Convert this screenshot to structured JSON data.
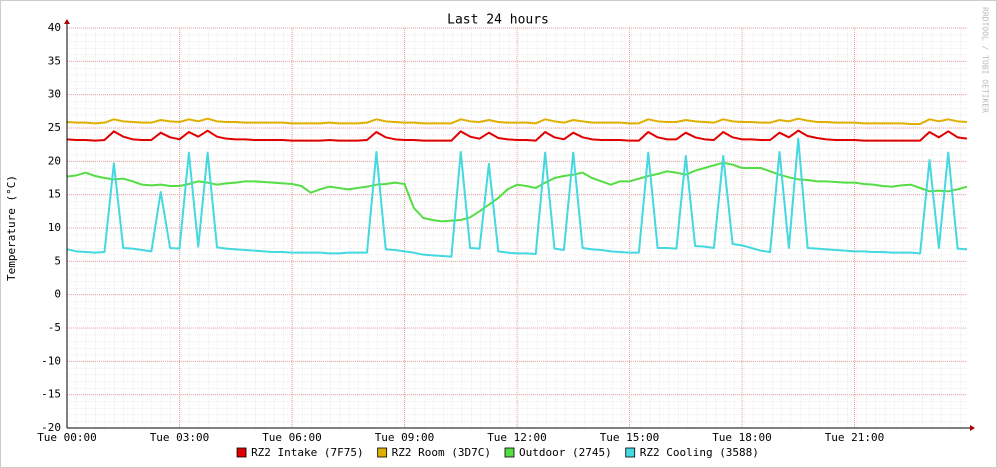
{
  "chart_data": {
    "type": "line",
    "title": "Last 24 hours",
    "ylabel": "Temperature (°C)",
    "watermark": "RRDTOOL / TOBI OETIKER",
    "grid": true,
    "xlim": [
      0,
      24
    ],
    "ylim": [
      -20,
      40
    ],
    "yticks": [
      -20,
      -15,
      -10,
      -5,
      0,
      5,
      10,
      15,
      20,
      25,
      30,
      35,
      40
    ],
    "xticks": [
      {
        "value": 0,
        "label": "Tue 00:00"
      },
      {
        "value": 3,
        "label": "Tue 03:00"
      },
      {
        "value": 6,
        "label": "Tue 06:00"
      },
      {
        "value": 9,
        "label": "Tue 09:00"
      },
      {
        "value": 12,
        "label": "Tue 12:00"
      },
      {
        "value": 15,
        "label": "Tue 15:00"
      },
      {
        "value": 18,
        "label": "Tue 18:00"
      },
      {
        "value": 21,
        "label": "Tue 21:00"
      }
    ],
    "x": [
      0,
      0.25,
      0.5,
      0.75,
      1,
      1.25,
      1.5,
      1.75,
      2,
      2.25,
      2.5,
      2.75,
      3,
      3.25,
      3.5,
      3.75,
      4,
      4.25,
      4.5,
      4.75,
      5,
      5.25,
      5.5,
      5.75,
      6,
      6.25,
      6.5,
      6.75,
      7,
      7.25,
      7.5,
      7.75,
      8,
      8.25,
      8.5,
      8.75,
      9,
      9.25,
      9.5,
      9.75,
      10,
      10.25,
      10.5,
      10.75,
      11,
      11.25,
      11.5,
      11.75,
      12,
      12.25,
      12.5,
      12.75,
      13,
      13.25,
      13.5,
      13.75,
      14,
      14.25,
      14.5,
      14.75,
      15,
      15.25,
      15.5,
      15.75,
      16,
      16.25,
      16.5,
      16.75,
      17,
      17.25,
      17.5,
      17.75,
      18,
      18.25,
      18.5,
      18.75,
      19,
      19.25,
      19.5,
      19.75,
      20,
      20.25,
      20.5,
      20.75,
      21,
      21.25,
      21.5,
      21.75,
      22,
      22.25,
      22.5,
      22.75,
      23,
      23.25,
      23.5,
      23.75,
      24
    ],
    "series": [
      {
        "name": "RZ2 Intake (7F75)",
        "color": "#e00000",
        "values": [
          23.3,
          23.2,
          23.2,
          23.1,
          23.2,
          24.5,
          23.7,
          23.3,
          23.2,
          23.2,
          24.3,
          23.6,
          23.3,
          24.4,
          23.7,
          24.6,
          23.7,
          23.4,
          23.3,
          23.3,
          23.2,
          23.2,
          23.2,
          23.2,
          23.1,
          23.1,
          23.1,
          23.1,
          23.2,
          23.1,
          23.1,
          23.1,
          23.2,
          24.4,
          23.6,
          23.3,
          23.2,
          23.2,
          23.1,
          23.1,
          23.1,
          23.1,
          24.5,
          23.7,
          23.4,
          24.3,
          23.5,
          23.3,
          23.2,
          23.2,
          23.1,
          24.4,
          23.6,
          23.3,
          24.3,
          23.6,
          23.3,
          23.2,
          23.2,
          23.2,
          23.1,
          23.1,
          24.4,
          23.6,
          23.3,
          23.3,
          24.3,
          23.6,
          23.3,
          23.2,
          24.4,
          23.6,
          23.3,
          23.3,
          23.2,
          23.2,
          24.3,
          23.6,
          24.6,
          23.8,
          23.5,
          23.3,
          23.2,
          23.2,
          23.2,
          23.1,
          23.1,
          23.1,
          23.1,
          23.1,
          23.1,
          23.1,
          24.4,
          23.6,
          24.5,
          23.6,
          23.4
        ]
      },
      {
        "name": "RZ2 Room (3D7C)",
        "color": "#e0b000",
        "values": [
          25.9,
          25.8,
          25.8,
          25.7,
          25.8,
          26.3,
          26.0,
          25.9,
          25.8,
          25.8,
          26.2,
          26.0,
          25.9,
          26.3,
          26.0,
          26.4,
          26.0,
          25.9,
          25.9,
          25.8,
          25.8,
          25.8,
          25.8,
          25.8,
          25.7,
          25.7,
          25.7,
          25.7,
          25.8,
          25.7,
          25.7,
          25.7,
          25.8,
          26.3,
          26.0,
          25.9,
          25.8,
          25.8,
          25.7,
          25.7,
          25.7,
          25.7,
          26.3,
          26.0,
          25.9,
          26.2,
          25.9,
          25.8,
          25.8,
          25.8,
          25.7,
          26.3,
          26.0,
          25.8,
          26.2,
          26.0,
          25.8,
          25.8,
          25.8,
          25.8,
          25.7,
          25.7,
          26.3,
          26.0,
          25.9,
          25.9,
          26.2,
          26.0,
          25.9,
          25.8,
          26.3,
          26.0,
          25.9,
          25.9,
          25.8,
          25.8,
          26.2,
          26.0,
          26.4,
          26.1,
          25.9,
          25.9,
          25.8,
          25.8,
          25.8,
          25.7,
          25.7,
          25.7,
          25.7,
          25.7,
          25.6,
          25.6,
          26.3,
          26.0,
          26.3,
          26.0,
          25.9
        ]
      },
      {
        "name": "Outdoor (2745)",
        "color": "#55dd44",
        "values": [
          17.7,
          17.9,
          18.3,
          17.8,
          17.5,
          17.3,
          17.4,
          17.0,
          16.5,
          16.4,
          16.5,
          16.3,
          16.3,
          16.6,
          17.0,
          16.8,
          16.5,
          16.7,
          16.8,
          17.0,
          17.0,
          16.9,
          16.8,
          16.7,
          16.6,
          16.3,
          15.3,
          15.8,
          16.2,
          16.0,
          15.8,
          16.0,
          16.2,
          16.5,
          16.6,
          16.8,
          16.6,
          13.0,
          11.5,
          11.2,
          11.0,
          11.1,
          11.2,
          11.6,
          12.5,
          13.5,
          14.5,
          15.8,
          16.5,
          16.3,
          16.0,
          16.8,
          17.5,
          17.8,
          18.0,
          18.3,
          17.5,
          17.0,
          16.5,
          17.0,
          17.0,
          17.4,
          17.8,
          18.1,
          18.5,
          18.3,
          18.0,
          18.6,
          19.0,
          19.4,
          19.8,
          19.5,
          19.0,
          19.0,
          19.0,
          18.5,
          18.0,
          17.6,
          17.3,
          17.2,
          17.0,
          17.0,
          16.9,
          16.8,
          16.8,
          16.6,
          16.5,
          16.3,
          16.2,
          16.4,
          16.5,
          16.0,
          15.5,
          15.6,
          15.5,
          15.8,
          16.2
        ]
      },
      {
        "name": "RZ2 Cooling (3588)",
        "color": "#44d8e0",
        "values": [
          6.8,
          6.5,
          6.4,
          6.3,
          6.4,
          19.7,
          7.0,
          6.9,
          6.7,
          6.5,
          15.4,
          7.0,
          6.9,
          21.3,
          7.2,
          21.3,
          7.1,
          6.9,
          6.8,
          6.7,
          6.6,
          6.5,
          6.4,
          6.4,
          6.3,
          6.3,
          6.3,
          6.3,
          6.2,
          6.2,
          6.3,
          6.3,
          6.3,
          21.4,
          6.8,
          6.7,
          6.5,
          6.3,
          6.0,
          5.9,
          5.8,
          5.7,
          21.4,
          7.0,
          6.9,
          19.6,
          6.5,
          6.3,
          6.2,
          6.2,
          6.1,
          21.3,
          6.9,
          6.7,
          21.3,
          7.0,
          6.8,
          6.7,
          6.5,
          6.4,
          6.3,
          6.3,
          21.3,
          7.0,
          7.0,
          6.9,
          20.8,
          7.3,
          7.2,
          7.0,
          20.8,
          7.6,
          7.4,
          7.0,
          6.6,
          6.4,
          21.4,
          7.0,
          23.4,
          7.0,
          6.9,
          6.8,
          6.7,
          6.6,
          6.5,
          6.5,
          6.4,
          6.4,
          6.3,
          6.3,
          6.3,
          6.2,
          20.2,
          7.0,
          21.3,
          6.9,
          6.8
        ]
      }
    ]
  }
}
